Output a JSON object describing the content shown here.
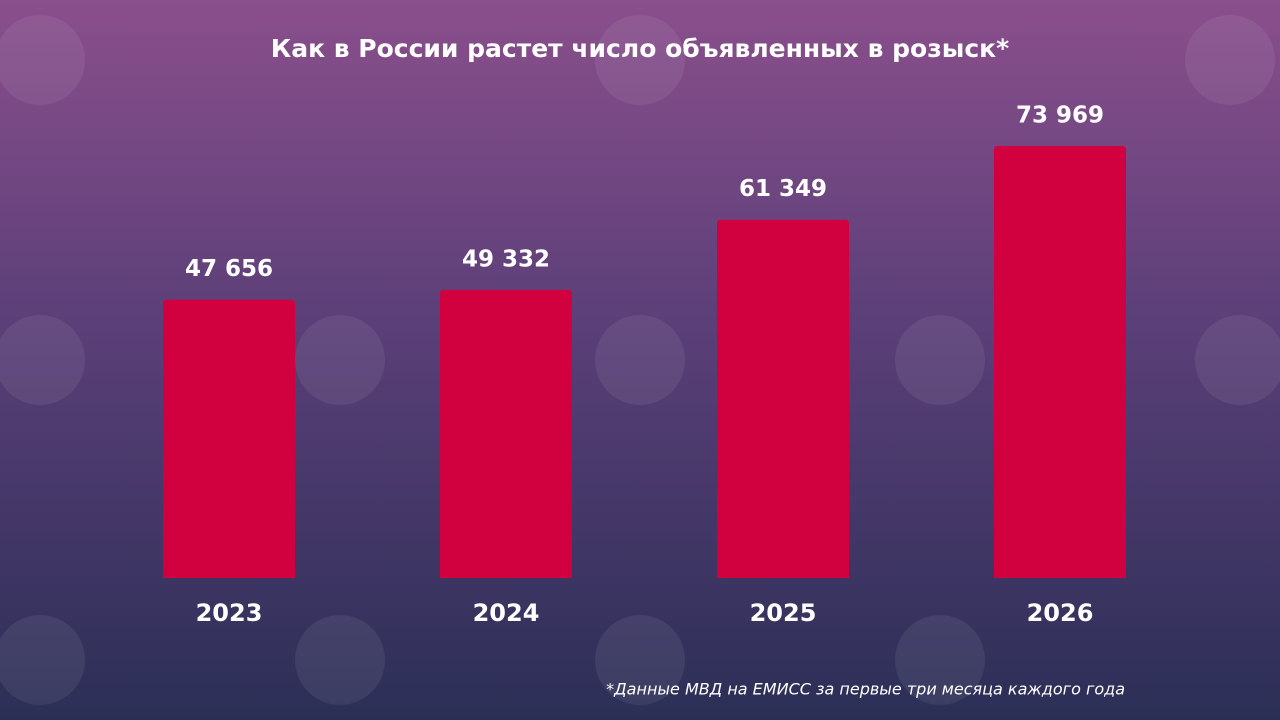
{
  "chart_data": {
    "type": "bar",
    "title": "Как в России растет число объявленных в розыск*",
    "categories": [
      "2023",
      "2024",
      "2025",
      "2026"
    ],
    "values": [
      47656,
      49332,
      61349,
      73969
    ],
    "value_labels": [
      "47 656",
      "49 332",
      "61 349",
      "73 969"
    ],
    "color": "#d1003f",
    "footnote": "*Данные МВД на ЕМИСС за первые три месяца каждого года"
  }
}
